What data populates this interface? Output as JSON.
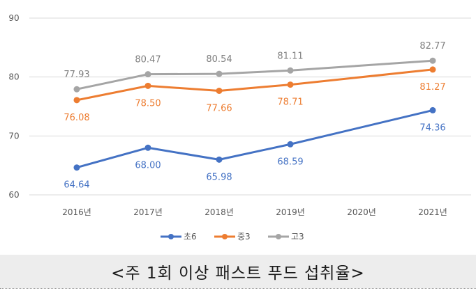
{
  "caption": "<주 1회 이상 패스트 푸드 섭취율>",
  "chart_data": {
    "type": "line",
    "categories": [
      "2016년",
      "2017년",
      "2018년",
      "2019년",
      "2020년",
      "2021년"
    ],
    "x": [
      2016,
      2017,
      2018,
      2019,
      2021
    ],
    "ylim": [
      60,
      90
    ],
    "yticks": [
      "60",
      "70",
      "80",
      "90"
    ],
    "grid": true,
    "legend_position": "bottom",
    "series": [
      {
        "name": "초6",
        "color": "#4472c4",
        "values": [
          64.64,
          68.0,
          65.98,
          68.59,
          74.36
        ],
        "labels": [
          "64.64",
          "68.00",
          "65.98",
          "68.59",
          "74.36"
        ],
        "label_pos": "below"
      },
      {
        "name": "중3",
        "color": "#ed7d31",
        "values": [
          76.08,
          78.5,
          77.66,
          78.71,
          81.27
        ],
        "labels": [
          "76.08",
          "78.50",
          "77.66",
          "78.71",
          "81.27"
        ],
        "label_pos": "below"
      },
      {
        "name": "고3",
        "color": "#a5a5a5",
        "values": [
          77.93,
          80.47,
          80.54,
          81.11,
          82.77
        ],
        "labels": [
          "77.93",
          "80.47",
          "80.54",
          "81.11",
          "82.77"
        ],
        "label_pos": "above"
      }
    ]
  }
}
